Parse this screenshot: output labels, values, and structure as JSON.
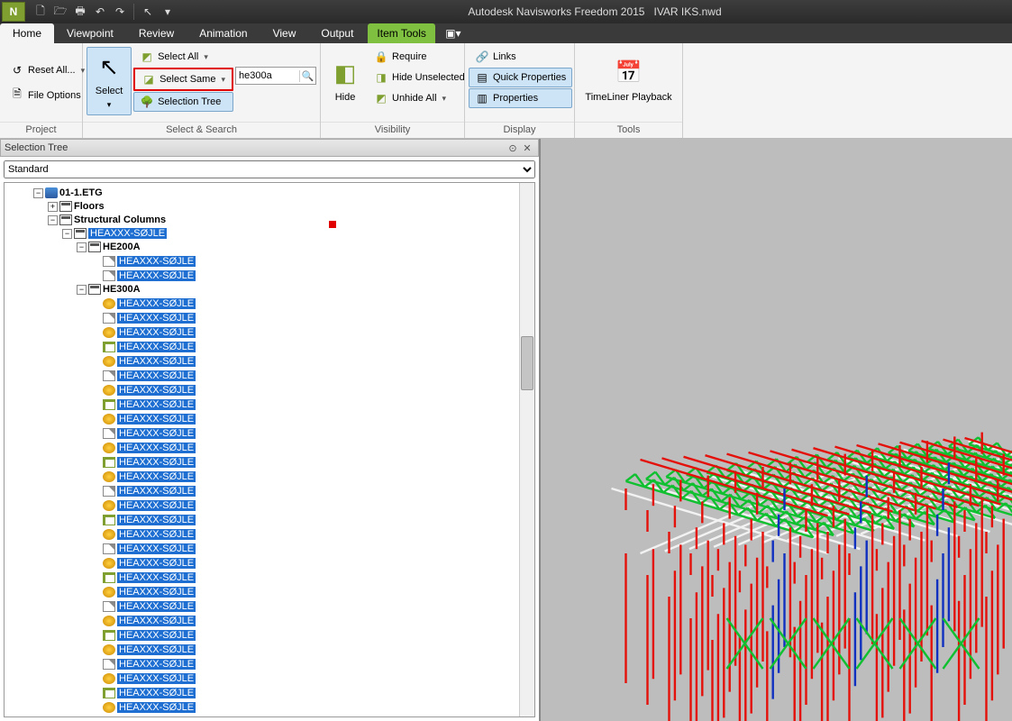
{
  "app": {
    "title": "Autodesk Navisworks Freedom 2015",
    "filename": "IVAR IKS.nwd",
    "icon_letter": "N"
  },
  "menu": {
    "items": [
      "Home",
      "Viewpoint",
      "Review",
      "Animation",
      "View",
      "Output"
    ],
    "active": "Home",
    "contextual": "Item Tools"
  },
  "ribbon": {
    "project": {
      "reset": "Reset All...",
      "fileopts": "File Options",
      "label": "Project"
    },
    "select": {
      "select_btn": "Select",
      "select_all": "Select All",
      "select_same": "Select Same",
      "selection_tree": "Selection Tree",
      "search_value": "he300a",
      "label": "Select & Search"
    },
    "visibility": {
      "hide": "Hide",
      "require": "Require",
      "hide_unsel": "Hide Unselected",
      "unhide": "Unhide All",
      "label": "Visibility"
    },
    "display": {
      "links": "Links",
      "quickprops": "Quick Properties",
      "props": "Properties",
      "label": "Display"
    },
    "tools": {
      "timeliner": "TimeLiner Playback",
      "label": "Tools"
    }
  },
  "panel": {
    "title": "Selection Tree",
    "mode": "Standard",
    "root": "01-1.ETG",
    "floors": "Floors",
    "structcols": "Structural Columns",
    "heaxxx": "HEAXXX-SØJLE",
    "he200a": "HE200A",
    "he300a": "HE300A",
    "leaf": "HEAXXX-SØJLE",
    "he200a_count": 2,
    "he300a_count": 30
  },
  "colors": {
    "column_red": "#e4100a",
    "column_blue": "#1030c0",
    "truss_green": "#10c030",
    "beam_white": "#f2f2f2",
    "viewport_bg": "#bdbdbd"
  }
}
